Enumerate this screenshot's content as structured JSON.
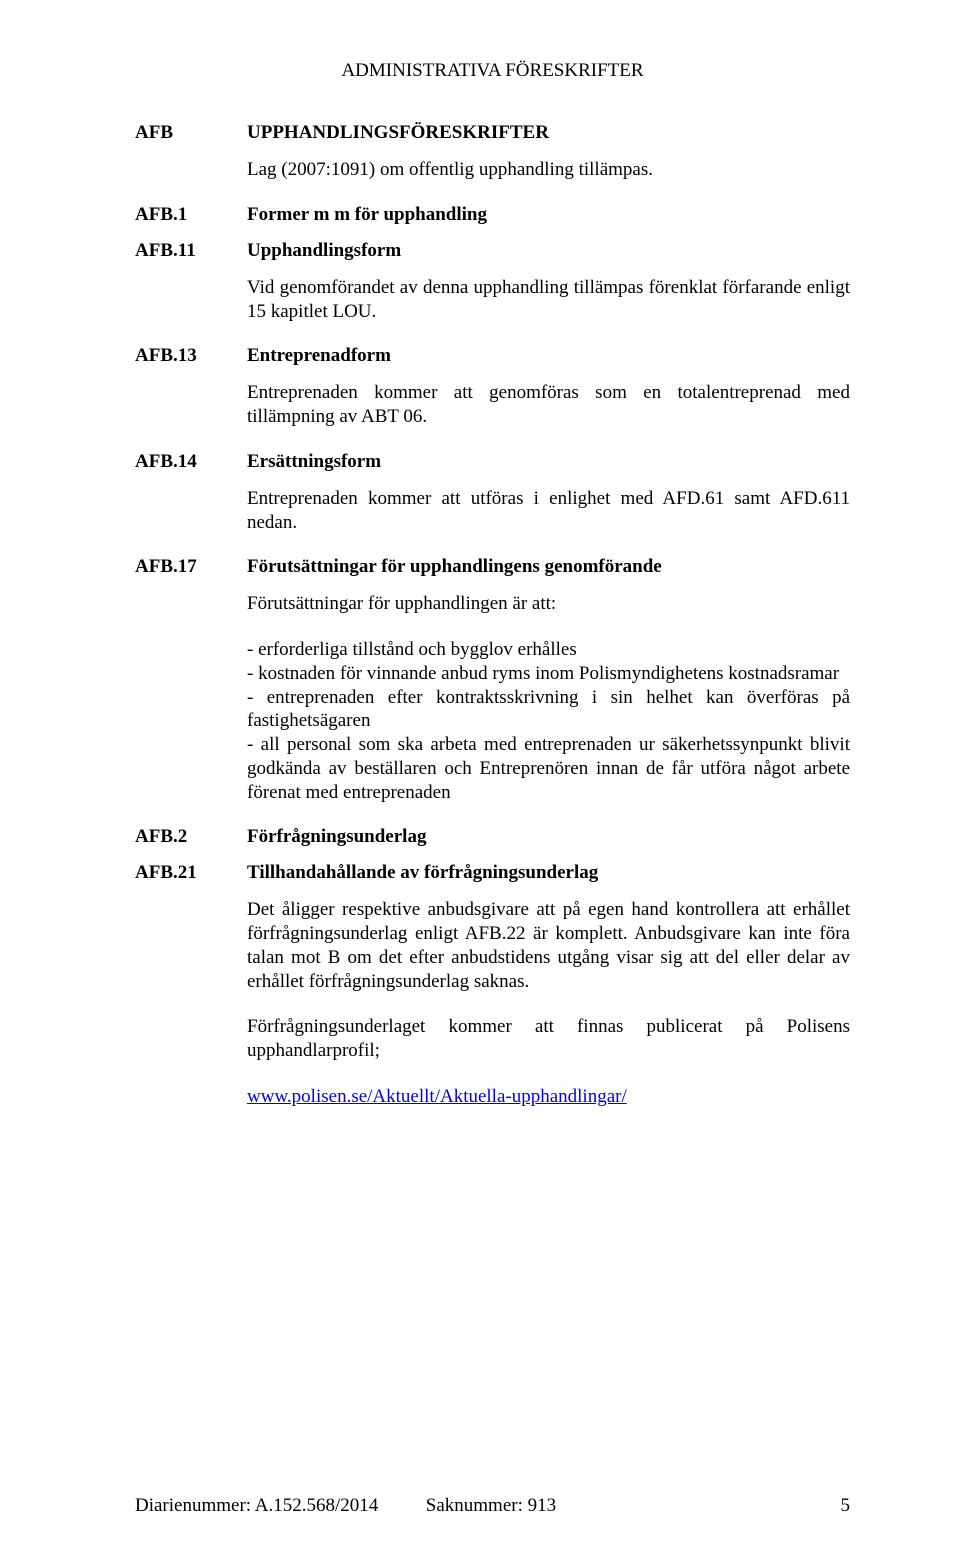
{
  "header": {
    "title": "ADMINISTRATIVA FÖRESKRIFTER"
  },
  "sections": [
    {
      "code": "AFB",
      "title": "UPPHANDLINGSFÖRESKRIFTER",
      "body": [
        "Lag (2007:1091) om offentlig upphandling tillämpas."
      ]
    },
    {
      "code": "AFB.1",
      "title": "Former m m för upphandling"
    },
    {
      "code": "AFB.11",
      "title": "Upphandlingsform",
      "body": [
        "Vid genomförandet av denna upphandling tillämpas förenklat förfarande enligt 15 kapitlet LOU."
      ]
    },
    {
      "code": "AFB.13",
      "title": "Entreprenadform",
      "body": [
        "Entreprenaden kommer att genomföras som en totalentreprenad med tillämpning av ABT 06."
      ]
    },
    {
      "code": "AFB.14",
      "title": "Ersättningsform",
      "body": [
        "Entreprenaden kommer att utföras i enlighet med AFD.61 samt AFD.611 nedan."
      ]
    },
    {
      "code": "AFB.17",
      "title": "Förutsättningar för upphandlingens genomförande",
      "body": [
        "Förutsättningar för upphandlingen är att:"
      ],
      "bullets": [
        "- erforderliga tillstånd och bygglov erhålles",
        "- kostnaden för vinnande anbud ryms inom Polismyndighetens kostnadsramar",
        "- entreprenaden efter kontraktsskrivning i sin helhet kan överföras på fastighetsägaren",
        "- all personal som ska arbeta med entreprenaden ur säkerhetssynpunkt blivit godkända av beställaren och Entreprenören innan de får utföra något arbete förenat med entreprenaden"
      ]
    },
    {
      "code": "AFB.2",
      "title": "Förfrågningsunderlag"
    },
    {
      "code": "AFB.21",
      "title": "Tillhandahållande av förfrågningsunderlag",
      "body": [
        "Det åligger respektive anbudsgivare att på egen hand kontrollera att erhållet förfrågningsunderlag enligt AFB.22 är komplett. Anbudsgivare kan inte föra talan mot B om det efter anbudstidens utgång visar sig att del eller delar av erhållet förfrågningsunderlag saknas.",
        "Förfrågningsunderlaget kommer att finnas publicerat på Polisens upphandlarprofil;"
      ],
      "link_text": "www.polisen.se/Aktuellt/Aktuella-upphandlingar/"
    }
  ],
  "footer": {
    "diarie_label": "Diarienummer:",
    "diarie_value": "A.152.568/2014",
    "sak_label": "Saknummer:",
    "sak_value": "913",
    "page_number": "5"
  }
}
